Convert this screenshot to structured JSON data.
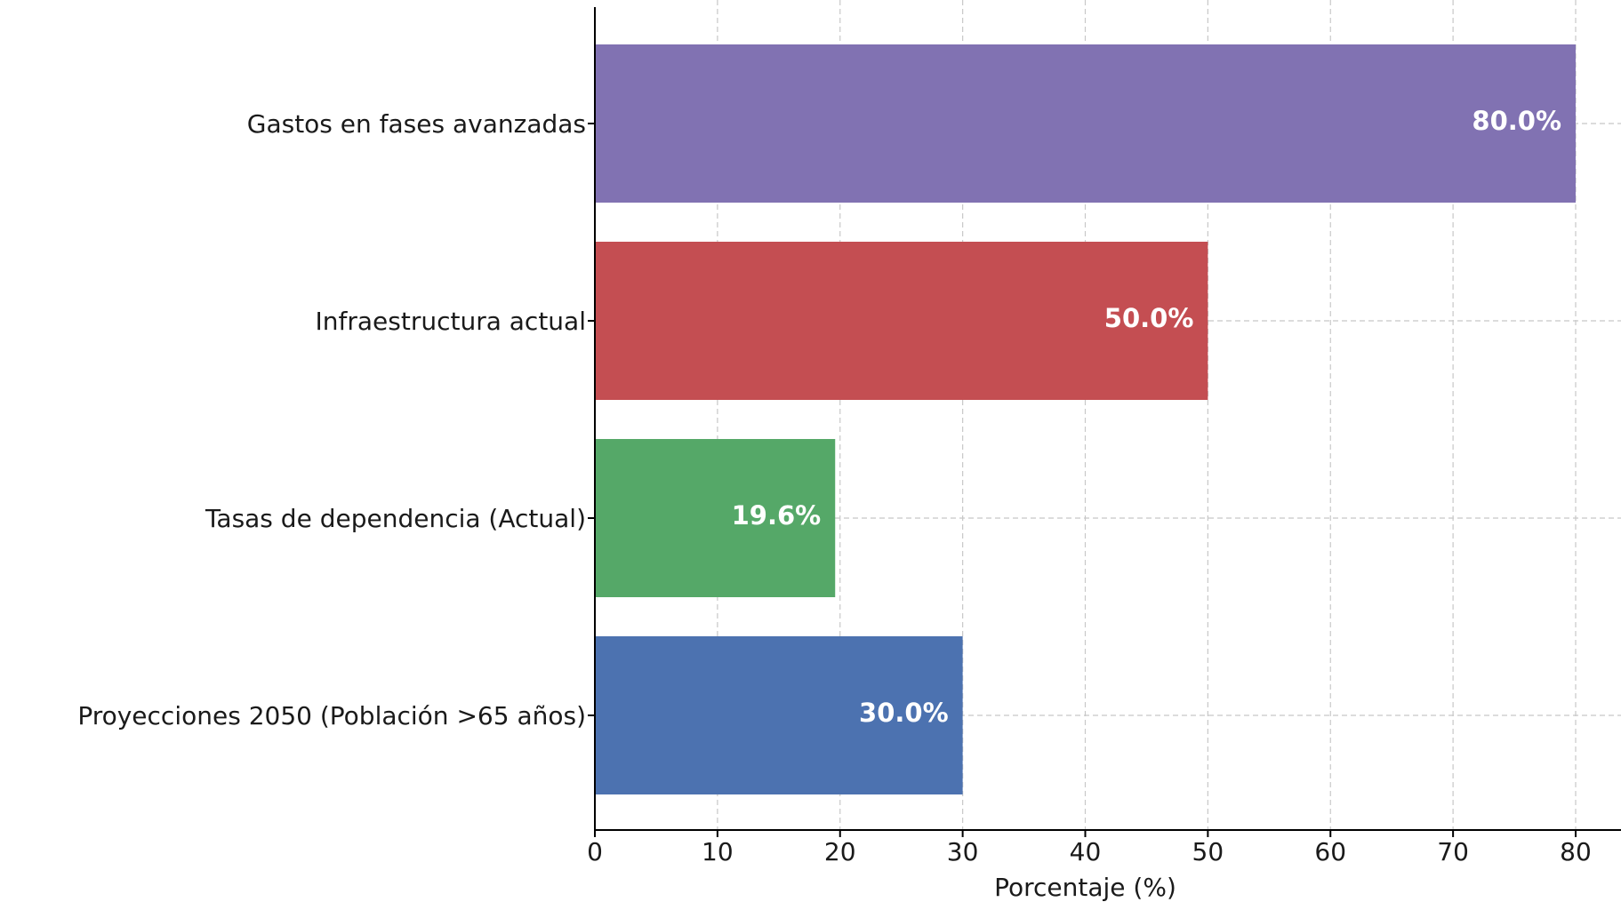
{
  "chart_data": {
    "type": "bar",
    "orientation": "horizontal",
    "categories": [
      "Gastos en fases avanzadas",
      "Infraestructura actual",
      "Tasas de dependencia (Actual)",
      "Proyecciones 2050 (Población >65 años)"
    ],
    "values": [
      80.0,
      50.0,
      19.6,
      30.0
    ],
    "value_labels": [
      "80.0%",
      "50.0%",
      "19.6%",
      "30.0%"
    ],
    "colors": [
      "#8172b2",
      "#c44e52",
      "#55a868",
      "#4c72b0"
    ],
    "xlabel": "Porcentaje (%)",
    "ylabel": "",
    "xlim": [
      0,
      80
    ],
    "xticks": [
      0,
      10,
      20,
      30,
      40,
      50,
      60,
      70,
      80
    ],
    "grid": true
  }
}
